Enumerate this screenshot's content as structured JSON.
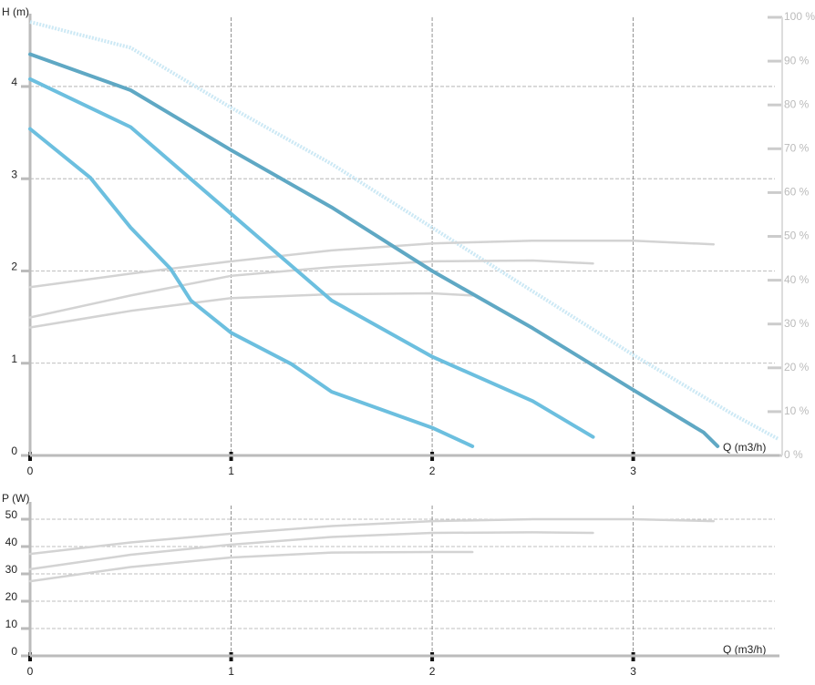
{
  "chart_data": [
    {
      "type": "line",
      "ylabel": "H (m)",
      "xlabel": "Q (m3/h)",
      "xlim": [
        0,
        3.75
      ],
      "xticks": [
        0,
        1,
        2,
        3
      ],
      "ylim": [
        0,
        4.75
      ],
      "yticks": [
        0,
        1,
        2,
        3,
        4
      ],
      "y2lim": [
        0,
        100
      ],
      "y2ticks": [
        {
          "value": 0,
          "label": "0 %"
        },
        {
          "value": 10,
          "label": "10 %"
        },
        {
          "value": 20,
          "label": "20 %"
        },
        {
          "value": 30,
          "label": "30 %"
        },
        {
          "value": 40,
          "label": "40 %"
        },
        {
          "value": 50,
          "label": "50 %"
        },
        {
          "value": 60,
          "label": "60 %"
        },
        {
          "value": 70,
          "label": "70 %"
        },
        {
          "value": 80,
          "label": "80 %"
        },
        {
          "value": 90,
          "label": "90 %"
        },
        {
          "value": 100,
          "label": "100 %"
        }
      ],
      "grid": true,
      "series": [
        {
          "color": "#cde9f5",
          "dash": "dotted",
          "x": [
            0,
            0.5,
            1,
            1.5,
            2,
            2.5,
            3,
            3.5,
            3.72
          ],
          "values": [
            4.7,
            4.42,
            3.77,
            3.16,
            2.47,
            1.78,
            1.09,
            0.44,
            0.18
          ]
        },
        {
          "color": "#d3d3d3",
          "axis": "y2",
          "x": [
            0,
            0.5,
            1,
            1.5,
            2,
            2.5,
            3,
            3.4
          ],
          "values": [
            38.4,
            41.5,
            44.3,
            46.8,
            48.4,
            49,
            49,
            48.2
          ]
        },
        {
          "color": "#d3d3d3",
          "axis": "y2",
          "x": [
            0,
            0.5,
            1,
            1.5,
            2,
            2.5,
            2.8
          ],
          "values": [
            31.5,
            36.5,
            41,
            43,
            44.3,
            44.5,
            43.8
          ]
        },
        {
          "color": "#d3d3d3",
          "axis": "y2",
          "x": [
            0,
            0.5,
            1,
            1.5,
            2,
            2.2
          ],
          "values": [
            29.2,
            33,
            35.9,
            36.8,
            37,
            36.5
          ]
        },
        {
          "color": "#5fa8c4",
          "x": [
            0,
            0.5,
            1,
            1.5,
            2,
            2.5,
            3,
            3.35,
            3.42
          ],
          "values": [
            4.35,
            3.96,
            3.31,
            2.69,
            2.0,
            1.38,
            0.71,
            0.25,
            0.1
          ]
        },
        {
          "color": "#6cbfdf",
          "x": [
            0,
            0.5,
            1,
            1.5,
            2,
            2.5,
            2.8
          ],
          "values": [
            4.08,
            3.56,
            2.62,
            1.68,
            1.07,
            0.59,
            0.2
          ]
        },
        {
          "color": "#6cbfdf",
          "x": [
            0,
            0.3,
            0.5,
            0.7,
            0.8,
            1,
            1.3,
            1.5,
            2,
            2.2
          ],
          "values": [
            3.54,
            3.01,
            2.47,
            2.02,
            1.68,
            1.33,
            0.99,
            0.69,
            0.3,
            0.1
          ]
        }
      ]
    },
    {
      "type": "line",
      "ylabel": "P (W)",
      "xlabel": "Q (m3/h)",
      "xlim": [
        0,
        3.75
      ],
      "xticks": [
        0,
        1,
        2,
        3
      ],
      "ylim": [
        0,
        55
      ],
      "yticks": [
        0,
        10,
        20,
        30,
        40,
        50
      ],
      "grid": true,
      "series": [
        {
          "color": "#d3d3d3",
          "x": [
            0,
            0.5,
            1,
            1.5,
            2,
            2.5,
            3,
            3.4
          ],
          "values": [
            37.3,
            41.5,
            44.7,
            47.5,
            49.3,
            50,
            50,
            49.3
          ]
        },
        {
          "color": "#d3d3d3",
          "x": [
            0,
            0.5,
            1,
            1.5,
            2,
            2.5,
            2.8
          ],
          "values": [
            31.7,
            37,
            40.7,
            43.5,
            45,
            45.2,
            45
          ]
        },
        {
          "color": "#d3d3d3",
          "x": [
            0,
            0.5,
            1,
            1.5,
            2,
            2.2
          ],
          "values": [
            27.3,
            32.5,
            36,
            37.8,
            38,
            38
          ]
        }
      ]
    }
  ]
}
